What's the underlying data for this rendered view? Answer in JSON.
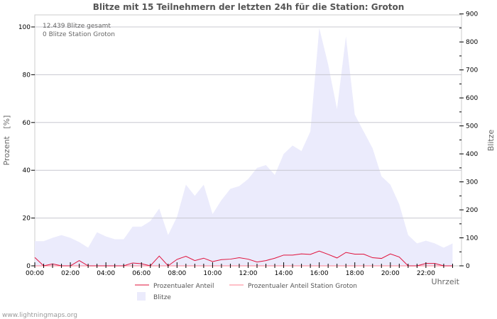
{
  "chart_data": {
    "type": "area",
    "title": "Blitze mit 15 Teilnehmern der letzten 24h für die Station: Groton",
    "xlabel": "Uhrzeit",
    "ylabel_left": "Prozent   [%]",
    "ylabel_right": "Blitze",
    "ylim_left": [
      0,
      100
    ],
    "ylim_right": [
      0,
      900
    ],
    "left_ticks": [
      "0",
      "20",
      "40",
      "60",
      "80",
      "100"
    ],
    "right_ticks": [
      "0",
      "100",
      "200",
      "300",
      "400",
      "500",
      "600",
      "700",
      "800",
      "900"
    ],
    "x_ticks": [
      "00:00",
      "02:00",
      "04:00",
      "06:00",
      "08:00",
      "10:00",
      "12:00",
      "14:00",
      "16:00",
      "18:00",
      "20:00",
      "22:00"
    ],
    "annotations": [
      "12.439 Blitze gesamt",
      "0 Blitze Station Groton"
    ],
    "x": [
      "00:00",
      "00:30",
      "01:00",
      "01:30",
      "02:00",
      "02:30",
      "03:00",
      "03:30",
      "04:00",
      "04:30",
      "05:00",
      "05:30",
      "06:00",
      "06:30",
      "07:00",
      "07:30",
      "08:00",
      "08:30",
      "09:00",
      "09:30",
      "10:00",
      "10:30",
      "11:00",
      "11:30",
      "12:00",
      "12:30",
      "13:00",
      "13:30",
      "14:00",
      "14:30",
      "15:00",
      "15:30",
      "16:00",
      "16:30",
      "17:00",
      "17:30",
      "18:00",
      "18:30",
      "19:00",
      "19:30",
      "20:00",
      "20:30",
      "21:00",
      "21:30",
      "22:00",
      "22:30",
      "23:00",
      "23:30"
    ],
    "series": [
      {
        "name": "Prozentualer Anteil",
        "axis": "left",
        "color": "#e0103a",
        "values": [
          3.5,
          0,
          0.8,
          0,
          0,
          2.2,
          0,
          0,
          0,
          0,
          0,
          1.2,
          0.9,
          0,
          4.1,
          0,
          2.7,
          4,
          2.2,
          3.2,
          1.8,
          2.6,
          2.8,
          3.4,
          2.8,
          1.6,
          2.2,
          3.2,
          4.5,
          4.5,
          5,
          4.8,
          6.2,
          4.8,
          3.3,
          5.6,
          4.9,
          4.9,
          3.4,
          3.1,
          5,
          3.7,
          0,
          0,
          1,
          1,
          0,
          0
        ]
      },
      {
        "name": "Prozentualer Anteil Station Groton",
        "axis": "left",
        "color": "#ff8090",
        "values": [
          0,
          0,
          0,
          0,
          0,
          0,
          0,
          0,
          0,
          0,
          0,
          0,
          0,
          0,
          0,
          0,
          0,
          0,
          0,
          0,
          0,
          0,
          0,
          0,
          0,
          0,
          0,
          0,
          0,
          0,
          0,
          0,
          0,
          0,
          0,
          0,
          0,
          0,
          0,
          0,
          0,
          0,
          0,
          0,
          0,
          0,
          0,
          0
        ]
      },
      {
        "name": "Blitze",
        "axis": "right",
        "color": "#ebebfc",
        "values": [
          88,
          88,
          100,
          110,
          100,
          85,
          65,
          120,
          105,
          95,
          95,
          140,
          140,
          160,
          205,
          110,
          175,
          290,
          250,
          290,
          185,
          235,
          275,
          285,
          310,
          350,
          360,
          325,
          400,
          430,
          410,
          480,
          850,
          720,
          560,
          820,
          540,
          480,
          420,
          320,
          290,
          220,
          110,
          80,
          90,
          80,
          65,
          80
        ]
      }
    ]
  },
  "footer": "www.lightningmaps.org"
}
